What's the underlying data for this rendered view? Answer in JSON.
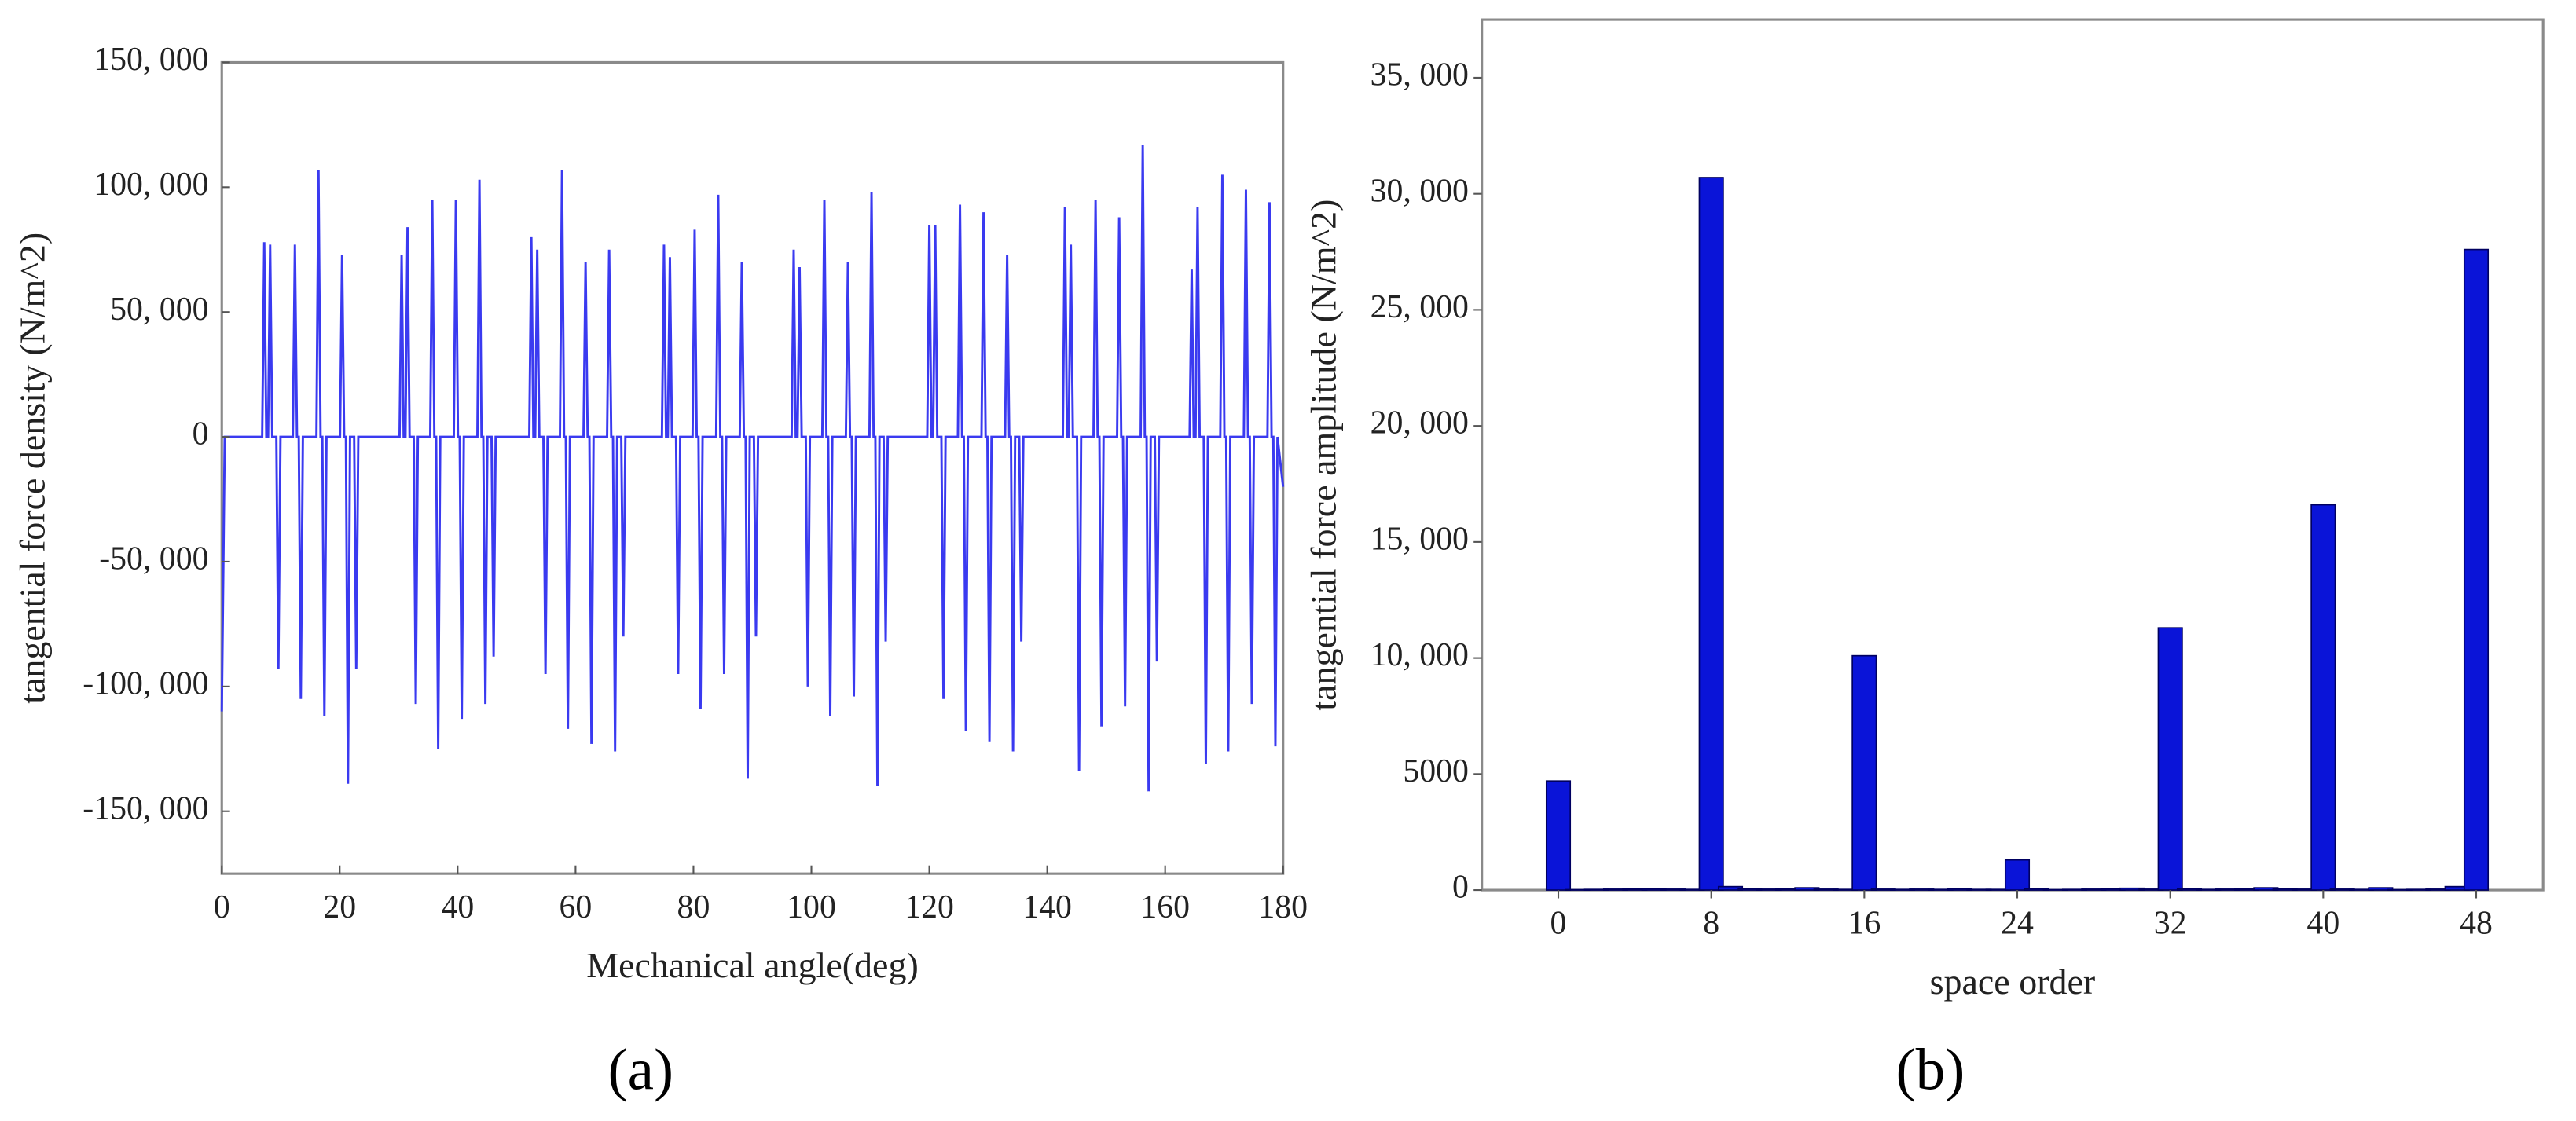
{
  "chart_data": [
    {
      "type": "line",
      "caption": "(a)",
      "xlabel": "Mechanical angle(deg)",
      "ylabel": "tangential force density  (N/m^2)",
      "color": "#3a3af0",
      "xlim": [
        0,
        180
      ],
      "xticks": [
        0,
        20,
        40,
        60,
        80,
        100,
        120,
        140,
        160,
        180
      ],
      "ylim": [
        -175000,
        150000
      ],
      "yticks": [
        {
          "value": 150000,
          "label": "150, 000"
        },
        {
          "value": 100000,
          "label": "100, 000"
        },
        {
          "value": 50000,
          "label": "50, 000"
        },
        0,
        {
          "value": -50000,
          "label": "-50, 000"
        },
        {
          "value": -100000,
          "label": "-100, 000"
        },
        {
          "value": -150000,
          "label": "-150, 000"
        }
      ],
      "x": [
        0,
        0.5,
        6.85,
        7.2,
        7.55,
        7.85,
        8.2,
        8.55,
        9.25,
        9.6,
        9.95,
        12.05,
        12.4,
        12.75,
        13.05,
        13.4,
        13.75,
        16.05,
        16.4,
        16.75,
        17.05,
        17.4,
        17.75,
        20.05,
        20.4,
        20.75,
        21.05,
        21.4,
        21.75,
        22.45,
        22.8,
        23.15,
        30.15,
        30.5,
        30.85,
        31.15,
        31.5,
        31.85,
        32.55,
        32.9,
        33.25,
        35.35,
        35.7,
        36.05,
        36.35,
        36.7,
        37.05,
        39.35,
        39.7,
        40.05,
        40.35,
        40.7,
        41.05,
        43.35,
        43.7,
        44.05,
        44.35,
        44.7,
        45.05,
        45.75,
        46.1,
        46.45,
        52.15,
        52.5,
        52.85,
        53.15,
        53.5,
        53.85,
        54.55,
        54.9,
        55.25,
        57.35,
        57.7,
        58.05,
        58.35,
        58.7,
        59.05,
        61.35,
        61.7,
        62.05,
        62.35,
        62.7,
        63.05,
        65.35,
        65.7,
        66.05,
        66.35,
        66.7,
        67.05,
        67.75,
        68.1,
        68.45,
        74.65,
        75,
        75.35,
        75.65,
        76,
        76.35,
        77.05,
        77.4,
        77.75,
        79.85,
        80.2,
        80.55,
        80.85,
        81.2,
        81.55,
        83.85,
        84.2,
        84.55,
        84.85,
        85.2,
        85.55,
        87.85,
        88.2,
        88.55,
        88.85,
        89.2,
        89.55,
        90.25,
        90.6,
        90.95,
        96.65,
        97,
        97.35,
        97.65,
        98,
        98.35,
        99.05,
        99.4,
        99.75,
        101.85,
        102.2,
        102.55,
        102.85,
        103.2,
        103.55,
        105.85,
        106.2,
        106.55,
        106.85,
        107.2,
        107.55,
        109.85,
        110.2,
        110.55,
        110.85,
        111.2,
        111.55,
        112.25,
        112.6,
        112.95,
        119.65,
        120,
        120.35,
        120.65,
        121,
        121.35,
        122.05,
        122.4,
        122.75,
        124.85,
        125.2,
        125.55,
        125.85,
        126.2,
        126.55,
        128.85,
        129.2,
        129.55,
        129.85,
        130.2,
        130.55,
        132.85,
        133.2,
        133.55,
        133.85,
        134.2,
        134.55,
        135.25,
        135.6,
        135.95,
        142.65,
        143,
        143.35,
        143.65,
        144,
        144.35,
        145.05,
        145.4,
        145.75,
        147.85,
        148.2,
        148.55,
        148.85,
        149.2,
        149.55,
        151.85,
        152.2,
        152.55,
        152.85,
        153.2,
        153.55,
        155.85,
        156.2,
        156.55,
        156.85,
        157.2,
        157.55,
        158.25,
        158.6,
        158.95,
        164.15,
        164.5,
        164.85,
        165.15,
        165.5,
        165.85,
        166.55,
        166.9,
        167.25,
        169.35,
        169.7,
        170.05,
        170.35,
        170.7,
        171.05,
        173.35,
        173.7,
        174.05,
        174.35,
        174.7,
        175.05,
        177.35,
        177.7,
        178.05,
        178.35,
        178.7,
        179.05,
        180
      ],
      "values": [
        -110000,
        0,
        0,
        78000,
        0,
        0,
        77000,
        0,
        0,
        -93000,
        0,
        0,
        77000,
        0,
        0,
        -105000,
        0,
        0,
        107000,
        0,
        0,
        -112000,
        0,
        0,
        73000,
        0,
        0,
        -139000,
        0,
        0,
        -93000,
        0,
        0,
        73000,
        0,
        0,
        84000,
        0,
        0,
        -107000,
        0,
        0,
        95000,
        0,
        0,
        -125000,
        0,
        0,
        95000,
        0,
        0,
        -113000,
        0,
        0,
        103000,
        0,
        0,
        -107000,
        0,
        0,
        -88000,
        0,
        0,
        80000,
        0,
        0,
        75000,
        0,
        0,
        -95000,
        0,
        0,
        107000,
        0,
        0,
        -117000,
        0,
        0,
        70000,
        0,
        0,
        -123000,
        0,
        0,
        75000,
        0,
        0,
        -126000,
        0,
        0,
        -80000,
        0,
        0,
        77000,
        0,
        0,
        72000,
        0,
        0,
        -95000,
        0,
        0,
        83000,
        0,
        0,
        -109000,
        0,
        0,
        97000,
        0,
        0,
        -95000,
        0,
        0,
        70000,
        0,
        0,
        -137000,
        0,
        0,
        -80000,
        0,
        0,
        75000,
        0,
        0,
        68000,
        0,
        0,
        -100000,
        0,
        0,
        95000,
        0,
        0,
        -112000,
        0,
        0,
        70000,
        0,
        0,
        -104000,
        0,
        0,
        98000,
        0,
        0,
        -140000,
        0,
        0,
        -82000,
        0,
        0,
        85000,
        0,
        0,
        85000,
        0,
        0,
        -105000,
        0,
        0,
        93000,
        0,
        0,
        -118000,
        0,
        0,
        90000,
        0,
        0,
        -122000,
        0,
        0,
        73000,
        0,
        0,
        -126000,
        0,
        0,
        -82000,
        0,
        0,
        92000,
        0,
        0,
        77000,
        0,
        0,
        -134000,
        0,
        0,
        95000,
        0,
        0,
        -116000,
        0,
        0,
        88000,
        0,
        0,
        -108000,
        0,
        0,
        117000,
        0,
        0,
        -142000,
        0,
        0,
        -90000,
        0,
        0,
        67000,
        0,
        0,
        92000,
        0,
        0,
        -131000,
        0,
        0,
        105000,
        0,
        0,
        -126000,
        0,
        0,
        99000,
        0,
        0,
        -107000,
        0,
        0,
        94000,
        0,
        0,
        -124000,
        0,
        -20000
      ]
    },
    {
      "type": "bar",
      "caption": "(b)",
      "xlabel": "space order",
      "ylabel": "tangential force amplitude  (N/m^2)",
      "color": "#0a14d8",
      "xlim": [
        -4,
        51.5
      ],
      "xticks": [
        0,
        8,
        16,
        24,
        32,
        40,
        48
      ],
      "ylim": [
        0,
        37500
      ],
      "yticks": [
        0,
        5000,
        {
          "value": 10000,
          "label": "10, 000"
        },
        {
          "value": 15000,
          "label": "15, 000"
        },
        {
          "value": 20000,
          "label": "20, 000"
        },
        {
          "value": 25000,
          "label": "25, 000"
        },
        {
          "value": 30000,
          "label": "30, 000"
        },
        {
          "value": 35000,
          "label": "35, 000"
        }
      ],
      "x": [
        0,
        1,
        2,
        3,
        4,
        5,
        6,
        7,
        8,
        9,
        10,
        11,
        12,
        13,
        14,
        15,
        16,
        17,
        18,
        19,
        20,
        21,
        22,
        23,
        24,
        25,
        26,
        27,
        28,
        29,
        30,
        31,
        32,
        33,
        34,
        35,
        36,
        37,
        38,
        39,
        40,
        41,
        42,
        43,
        44,
        45,
        46,
        47,
        48
      ],
      "values": [
        4700,
        20,
        30,
        40,
        50,
        60,
        40,
        30,
        30700,
        150,
        60,
        40,
        50,
        100,
        40,
        30,
        10100,
        40,
        30,
        40,
        30,
        60,
        30,
        30,
        1300,
        60,
        20,
        30,
        40,
        60,
        80,
        40,
        11300,
        60,
        30,
        40,
        50,
        100,
        60,
        40,
        16600,
        40,
        30,
        100,
        20,
        30,
        40,
        150,
        27600
      ]
    }
  ]
}
